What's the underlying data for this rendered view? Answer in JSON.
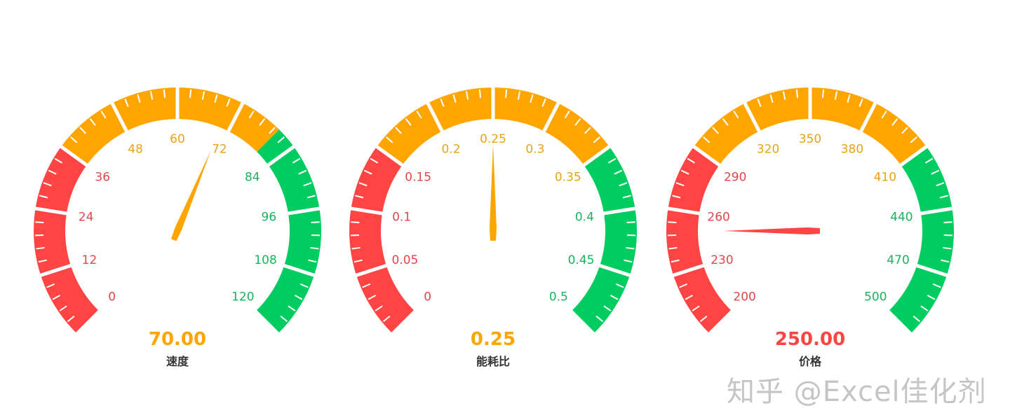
{
  "chart_data": [
    {
      "type": "gauge",
      "name": "速度",
      "min": 0,
      "max": 120,
      "value": 70,
      "value_text": "70.00",
      "split_number": 10,
      "tick_labels": [
        "0",
        "12",
        "24",
        "36",
        "48",
        "60",
        "72",
        "84",
        "96",
        "108",
        "120"
      ],
      "bands": [
        {
          "to": 0.3,
          "color": "#FF4444"
        },
        {
          "to": 0.667,
          "color": "#FFA500"
        },
        {
          "to": 1,
          "color": "#00CC60"
        }
      ]
    },
    {
      "type": "gauge",
      "name": "能耗比",
      "min": 0,
      "max": 0.5,
      "value": 0.25,
      "value_text": "0.25",
      "split_number": 10,
      "tick_labels": [
        "0",
        "0.05",
        "0.1",
        "0.15",
        "0.2",
        "0.25",
        "0.3",
        "0.35",
        "0.4",
        "0.45",
        "0.5"
      ],
      "bands": [
        {
          "to": 0.3,
          "color": "#FF4444"
        },
        {
          "to": 0.7,
          "color": "#FFA500"
        },
        {
          "to": 1,
          "color": "#00CC60"
        }
      ]
    },
    {
      "type": "gauge",
      "name": "价格",
      "min": 200,
      "max": 500,
      "value": 250,
      "value_text": "250.00",
      "split_number": 10,
      "tick_labels": [
        "200",
        "230",
        "260",
        "290",
        "320",
        "350",
        "380",
        "410",
        "440",
        "470",
        "500"
      ],
      "bands": [
        {
          "to": 0.3,
          "color": "#FF4444"
        },
        {
          "to": 0.7,
          "color": "#FFA500"
        },
        {
          "to": 1,
          "color": "#00CC60"
        }
      ]
    }
  ],
  "label_colors": {
    "#FF4444": "#E0474C",
    "#FFA500": "#E8A317",
    "#00CC60": "#19B35F"
  },
  "watermark": "知乎 @Excel佳化剂"
}
